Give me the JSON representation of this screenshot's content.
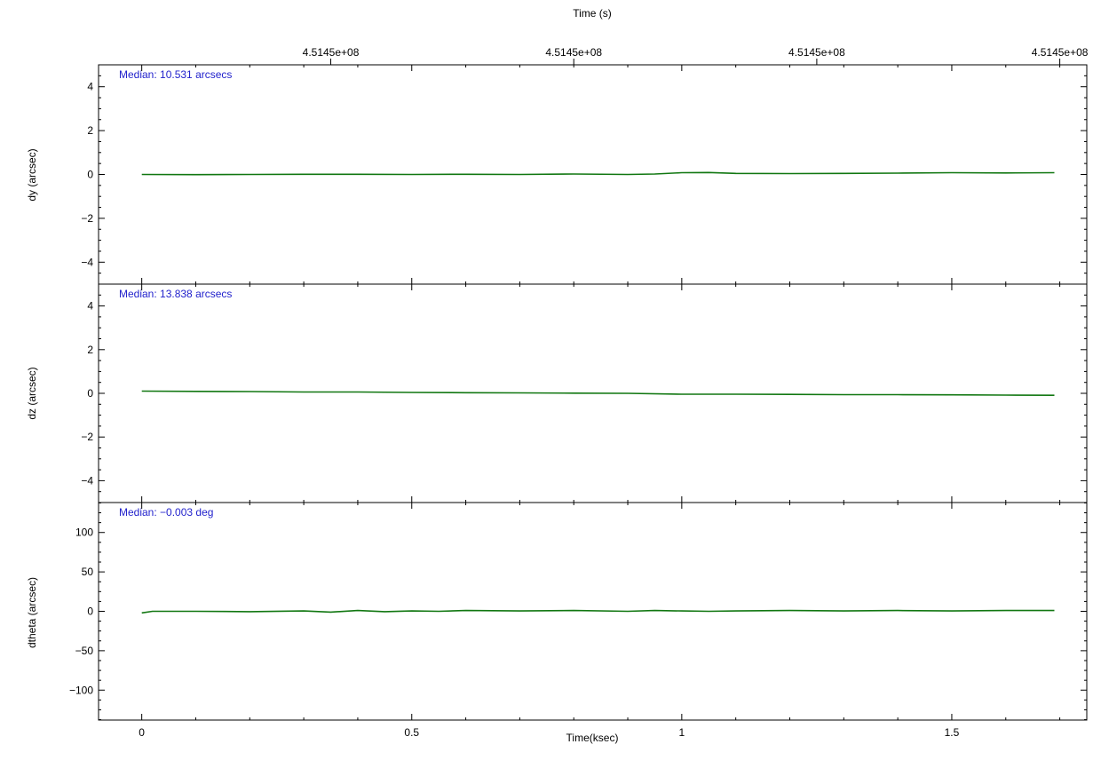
{
  "chart_data": {
    "type": "line",
    "top_axis": {
      "title": "Time (s)",
      "tick_labels": [
        {
          "x": 0.35,
          "label": "4.5145e+08"
        },
        {
          "x": 0.8,
          "label": "4.5145e+08"
        },
        {
          "x": 1.25,
          "label": "4.5145e+08"
        },
        {
          "x": 1.7,
          "label": "4.5145e+08"
        }
      ]
    },
    "x_axis": {
      "title": "Time(ksec)",
      "xlim": [
        -0.08,
        1.75
      ],
      "ticks": [
        0,
        0.5,
        1,
        1.5
      ],
      "tick_labels": [
        "0",
        "0.5",
        "1",
        "1.5"
      ]
    },
    "panels": [
      {
        "ylabel": "dy (arcsec)",
        "annotation": "Median: 10.531 arcsecs",
        "ylim": [
          -5,
          5
        ],
        "yticks": [
          -4,
          -2,
          0,
          2,
          4
        ],
        "ytick_labels": [
          "−4",
          "−2",
          "0",
          "2",
          "4"
        ],
        "series": [
          {
            "color": "#117711",
            "x": [
              0,
              0.1,
              0.2,
              0.3,
              0.4,
              0.5,
              0.6,
              0.7,
              0.8,
              0.9,
              0.95,
              1.0,
              1.05,
              1.1,
              1.2,
              1.3,
              1.4,
              1.5,
              1.6,
              1.69
            ],
            "y": [
              0.0,
              -0.01,
              0.0,
              0.01,
              0.01,
              0.0,
              0.01,
              0.0,
              0.02,
              0.0,
              0.02,
              0.08,
              0.09,
              0.05,
              0.04,
              0.05,
              0.06,
              0.08,
              0.07,
              0.08
            ]
          }
        ]
      },
      {
        "ylabel": "dz (arcsec)",
        "annotation": "Median: 13.838 arcsecs",
        "ylim": [
          -5,
          5
        ],
        "yticks": [
          -4,
          -2,
          0,
          2,
          4
        ],
        "ytick_labels": [
          "−4",
          "−2",
          "0",
          "2",
          "4"
        ],
        "series": [
          {
            "color": "#117711",
            "x": [
              0,
              0.1,
              0.2,
              0.3,
              0.4,
              0.5,
              0.6,
              0.7,
              0.8,
              0.9,
              1.0,
              1.1,
              1.2,
              1.3,
              1.4,
              1.5,
              1.6,
              1.69
            ],
            "y": [
              0.1,
              0.09,
              0.08,
              0.06,
              0.06,
              0.04,
              0.03,
              0.02,
              0.01,
              0.0,
              -0.04,
              -0.04,
              -0.05,
              -0.06,
              -0.06,
              -0.07,
              -0.08,
              -0.09
            ]
          }
        ]
      },
      {
        "ylabel": "dtheta (arcsec)",
        "annotation": "Median: −0.003 deg",
        "ylim": [
          -138,
          138
        ],
        "yticks": [
          -100,
          -50,
          0,
          50,
          100
        ],
        "ytick_labels": [
          "−100",
          "−50",
          "0",
          "50",
          "100"
        ],
        "series": [
          {
            "color": "#117711",
            "x": [
              0,
              0.02,
              0.1,
              0.2,
              0.3,
              0.35,
              0.4,
              0.45,
              0.5,
              0.55,
              0.6,
              0.7,
              0.8,
              0.9,
              0.95,
              1.0,
              1.05,
              1.1,
              1.2,
              1.3,
              1.4,
              1.5,
              1.6,
              1.69
            ],
            "y": [
              -2,
              0,
              0,
              -0.5,
              0.5,
              -1,
              1,
              -0.5,
              0.5,
              0,
              1,
              0.5,
              1,
              0,
              1,
              0.5,
              0,
              0.5,
              1,
              0.5,
              1,
              0.5,
              1,
              1
            ]
          }
        ]
      }
    ],
    "grid": false,
    "annotation_color": "#2222cc"
  }
}
